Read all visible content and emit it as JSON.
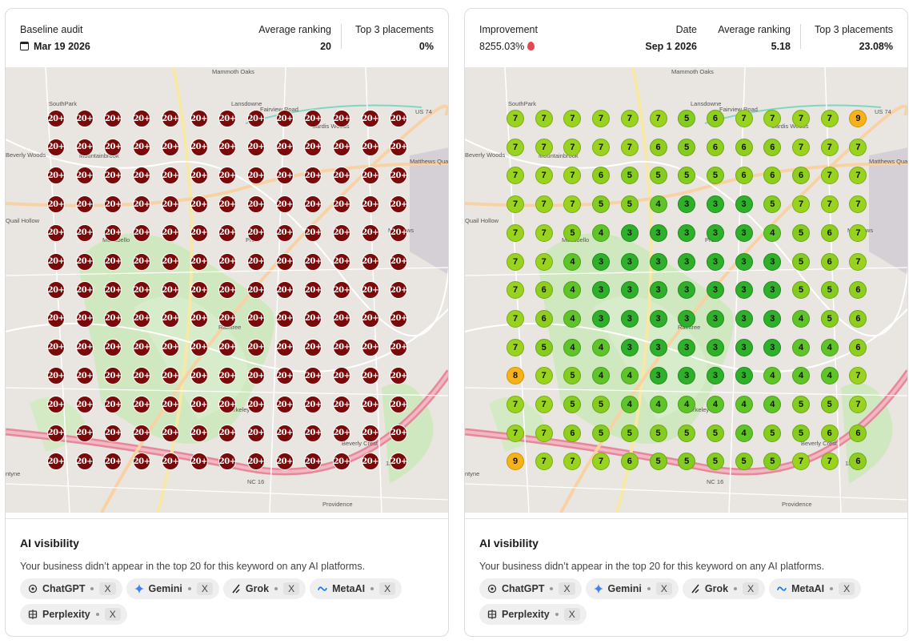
{
  "left_card": {
    "title_label": "Baseline audit",
    "date": "Mar 19 2026",
    "avg_label": "Average ranking",
    "avg_value": "20",
    "top3_label": "Top 3 placements",
    "top3_value": "0%",
    "grid": [
      [
        "20+",
        "20+",
        "20+",
        "20+",
        "20+",
        "20+",
        "20+",
        "20+",
        "20+",
        "20+",
        "20+",
        "20+",
        "20+"
      ],
      [
        "20+",
        "20+",
        "20+",
        "20+",
        "20+",
        "20+",
        "20+",
        "20+",
        "20+",
        "20+",
        "20+",
        "20+",
        "20+"
      ],
      [
        "20+",
        "20+",
        "20+",
        "20+",
        "20+",
        "20+",
        "20+",
        "20+",
        "20+",
        "20+",
        "20+",
        "20+",
        "20+"
      ],
      [
        "20+",
        "20+",
        "20+",
        "20+",
        "20+",
        "20+",
        "20+",
        "20+",
        "20+",
        "20+",
        "20+",
        "20+",
        "20+"
      ],
      [
        "20+",
        "20+",
        "20+",
        "20+",
        "20+",
        "20+",
        "20+",
        "20+",
        "20+",
        "20+",
        "20+",
        "20+",
        "20+"
      ],
      [
        "20+",
        "20+",
        "20+",
        "20+",
        "20+",
        "20+",
        "20+",
        "20+",
        "20+",
        "20+",
        "20+",
        "20+",
        "20+"
      ],
      [
        "20+",
        "20+",
        "20+",
        "20+",
        "20+",
        "20+",
        "20+",
        "20+",
        "20+",
        "20+",
        "20+",
        "20+",
        "20+"
      ],
      [
        "20+",
        "20+",
        "20+",
        "20+",
        "20+",
        "20+",
        "20+",
        "20+",
        "20+",
        "20+",
        "20+",
        "20+",
        "20+"
      ],
      [
        "20+",
        "20+",
        "20+",
        "20+",
        "20+",
        "20+",
        "20+",
        "20+",
        "20+",
        "20+",
        "20+",
        "20+",
        "20+"
      ],
      [
        "20+",
        "20+",
        "20+",
        "20+",
        "20+",
        "20+",
        "20+",
        "20+",
        "20+",
        "20+",
        "20+",
        "20+",
        "20+"
      ],
      [
        "20+",
        "20+",
        "20+",
        "20+",
        "20+",
        "20+",
        "20+",
        "20+",
        "20+",
        "20+",
        "20+",
        "20+",
        "20+"
      ],
      [
        "20+",
        "20+",
        "20+",
        "20+",
        "20+",
        "20+",
        "20+",
        "20+",
        "20+",
        "20+",
        "20+",
        "20+",
        "20+"
      ],
      [
        "20+",
        "20+",
        "20+",
        "20+",
        "20+",
        "20+",
        "20+",
        "20+",
        "20+",
        "20+",
        "20+",
        "20+",
        "20+"
      ]
    ]
  },
  "right_card": {
    "improvement_label": "Improvement",
    "improvement_value": "8255.03%",
    "date_label": "Date",
    "date": "Sep 1 2026",
    "avg_label": "Average ranking",
    "avg_value": "5.18",
    "top3_label": "Top 3 placements",
    "top3_value": "23.08%",
    "grid": [
      [
        "7",
        "7",
        "7",
        "7",
        "7",
        "7",
        "5",
        "6",
        "7",
        "7",
        "7",
        "7",
        "9"
      ],
      [
        "7",
        "7",
        "7",
        "7",
        "7",
        "6",
        "5",
        "6",
        "6",
        "6",
        "7",
        "7",
        "7"
      ],
      [
        "7",
        "7",
        "7",
        "6",
        "5",
        "5",
        "5",
        "5",
        "6",
        "6",
        "6",
        "7",
        "7"
      ],
      [
        "7",
        "7",
        "7",
        "5",
        "5",
        "4",
        "3",
        "3",
        "3",
        "5",
        "7",
        "7",
        "7"
      ],
      [
        "7",
        "7",
        "5",
        "4",
        "3",
        "3",
        "3",
        "3",
        "3",
        "4",
        "5",
        "6",
        "7"
      ],
      [
        "7",
        "7",
        "4",
        "3",
        "3",
        "3",
        "3",
        "3",
        "3",
        "3",
        "5",
        "6",
        "7"
      ],
      [
        "7",
        "6",
        "4",
        "3",
        "3",
        "3",
        "3",
        "3",
        "3",
        "3",
        "5",
        "5",
        "6"
      ],
      [
        "7",
        "6",
        "4",
        "3",
        "3",
        "3",
        "3",
        "3",
        "3",
        "3",
        "4",
        "5",
        "6"
      ],
      [
        "7",
        "5",
        "4",
        "4",
        "3",
        "3",
        "3",
        "3",
        "3",
        "3",
        "4",
        "4",
        "6"
      ],
      [
        "8",
        "7",
        "5",
        "4",
        "4",
        "3",
        "3",
        "3",
        "3",
        "4",
        "4",
        "4",
        "7"
      ],
      [
        "7",
        "7",
        "5",
        "5",
        "4",
        "4",
        "4",
        "4",
        "4",
        "4",
        "5",
        "5",
        "7"
      ],
      [
        "7",
        "7",
        "6",
        "5",
        "5",
        "5",
        "5",
        "5",
        "4",
        "5",
        "5",
        "6",
        "6"
      ],
      [
        "9",
        "7",
        "7",
        "7",
        "6",
        "5",
        "5",
        "5",
        "5",
        "5",
        "7",
        "7",
        "6"
      ]
    ]
  },
  "map_labels": [
    "Mammoth Oaks",
    "SouthPark",
    "Lansdowne",
    "Fairview Road",
    "US 74",
    "Sardis Woods",
    "Beverly Woods",
    "Mountainbrook",
    "Matthews Quarry",
    "Quail Hollow",
    "Matthews",
    "Montibello",
    "Raintree",
    "Berkeley",
    "NC 16",
    "Providence",
    "Beverly Crest",
    "Provi",
    "1345",
    "ntyne"
  ],
  "visibility": {
    "title": "AI visibility",
    "message": "Your business didn’t appear in the top 20 for this keyword on any AI platforms.",
    "platforms": [
      {
        "name": "ChatGPT",
        "status": "X",
        "icon": "chatgpt-icon"
      },
      {
        "name": "Gemini",
        "status": "X",
        "icon": "gemini-icon"
      },
      {
        "name": "Grok",
        "status": "X",
        "icon": "grok-icon"
      },
      {
        "name": "MetaAI",
        "status": "X",
        "icon": "meta-icon"
      },
      {
        "name": "Perplexity",
        "status": "X",
        "icon": "perplexity-icon"
      }
    ]
  },
  "colors": {
    "baseline_pin": "#7a0a0a",
    "rank3": "#2fb02a",
    "rank4": "#5fc428",
    "rank5_7": "#9ad31f",
    "rank8_plus": "#f5b21a",
    "flame": "#e5484d"
  }
}
